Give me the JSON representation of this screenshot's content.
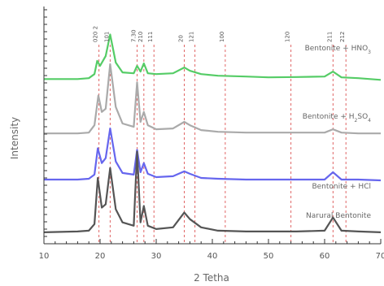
{
  "chart_data": {
    "type": "line",
    "xlabel": "2 Tetha",
    "ylabel": "Intensity",
    "xlim": [
      10,
      70
    ],
    "xticks": [
      10,
      20,
      30,
      40,
      50,
      60,
      70
    ],
    "yticks_labeled": false,
    "grid": false,
    "legend": "inline labels on the right of each trace",
    "colors": {
      "Bentonite + HNO3": "#55cc66",
      "Bentonite + H2SO4": "#aaaaaa",
      "Bentonite + HCl": "#6666ee",
      "Natural Bentonite": "#555555",
      "reference_lines": "#e06666"
    },
    "series": [
      {
        "name": "Bentonite + HNO3",
        "label_main": "Bentonite + HNO",
        "label_sub": "3",
        "x": [
          10,
          16,
          18,
          19,
          19.5,
          20,
          21,
          21.8,
          22.8,
          24,
          26,
          26.6,
          27.2,
          27.8,
          28.5,
          30,
          33,
          35,
          36,
          38,
          41,
          46,
          50,
          55,
          60,
          61.5,
          63,
          66,
          70
        ],
        "y": [
          0.6,
          0.6,
          0.65,
          0.9,
          1.7,
          1.4,
          2.0,
          3.3,
          1.6,
          1.0,
          0.95,
          1.4,
          1.05,
          1.55,
          0.95,
          0.9,
          0.95,
          1.3,
          1.1,
          0.9,
          0.8,
          0.75,
          0.7,
          0.72,
          0.75,
          1.05,
          0.7,
          0.65,
          0.55
        ]
      },
      {
        "name": "Bentonite + H2SO4",
        "label_main": "Bentonite + H",
        "label_sub": "2",
        "label_after": "SO",
        "label_sub2": "4",
        "x": [
          10,
          16,
          18,
          19,
          19.7,
          20.3,
          21,
          21.8,
          22.8,
          24,
          26,
          26.6,
          27.2,
          27.8,
          28.5,
          30,
          33,
          35,
          36,
          38,
          41,
          46,
          50,
          55,
          60,
          61.5,
          63,
          66,
          70
        ],
        "y": [
          0.3,
          0.3,
          0.35,
          0.8,
          2.6,
          1.6,
          1.8,
          4.5,
          1.9,
          0.9,
          0.7,
          3.4,
          1.0,
          1.6,
          0.8,
          0.55,
          0.6,
          1.0,
          0.8,
          0.5,
          0.4,
          0.35,
          0.35,
          0.35,
          0.35,
          0.55,
          0.35,
          0.3,
          0.3
        ]
      },
      {
        "name": "Bentonite + HCl",
        "label_main": "Bentonite + HCl",
        "x": [
          10,
          16,
          18,
          19,
          19.6,
          20.3,
          21,
          21.8,
          22.8,
          24,
          26,
          26.6,
          27.2,
          27.8,
          28.5,
          30,
          33,
          35,
          36,
          38,
          41,
          46,
          50,
          55,
          60,
          61.5,
          63,
          66,
          70
        ],
        "y": [
          0.5,
          0.5,
          0.55,
          0.8,
          2.4,
          1.5,
          1.8,
          3.6,
          1.6,
          0.9,
          0.8,
          2.3,
          0.95,
          1.5,
          0.85,
          0.65,
          0.7,
          1.0,
          0.85,
          0.6,
          0.55,
          0.5,
          0.5,
          0.5,
          0.5,
          0.95,
          0.5,
          0.5,
          0.45
        ]
      },
      {
        "name": "Natural Bentonite",
        "label_main": "Narural Bentonite",
        "x": [
          10,
          16,
          18,
          19,
          19.6,
          20.3,
          21,
          21.8,
          22.8,
          24,
          26,
          26.6,
          27.2,
          27.8,
          28.5,
          30,
          33,
          35,
          36,
          38,
          41,
          46,
          50,
          55,
          60,
          61.5,
          63,
          66,
          70
        ],
        "y": [
          0.3,
          0.35,
          0.4,
          0.8,
          3.6,
          1.8,
          2.0,
          4.2,
          1.7,
          0.9,
          0.7,
          5.2,
          0.9,
          1.9,
          0.7,
          0.5,
          0.6,
          1.5,
          1.1,
          0.6,
          0.4,
          0.35,
          0.35,
          0.35,
          0.4,
          1.2,
          0.4,
          0.35,
          0.3
        ]
      }
    ],
    "series_offsets": [
      9.0,
      6.0,
      3.0,
      0.0
    ],
    "reference_lines": [
      {
        "x": 19.8,
        "label": "020 2"
      },
      {
        "x": 21.8,
        "label": "101"
      },
      {
        "x": 26.6,
        "label": "7.30"
      },
      {
        "x": 27.8,
        "label": "210"
      },
      {
        "x": 29.6,
        "label": "111"
      },
      {
        "x": 35.0,
        "label": "20"
      },
      {
        "x": 36.9,
        "label": "121"
      },
      {
        "x": 42.3,
        "label": "100"
      },
      {
        "x": 54.0,
        "label": "120"
      },
      {
        "x": 61.5,
        "label": "211"
      },
      {
        "x": 63.8,
        "label": "212"
      }
    ]
  }
}
